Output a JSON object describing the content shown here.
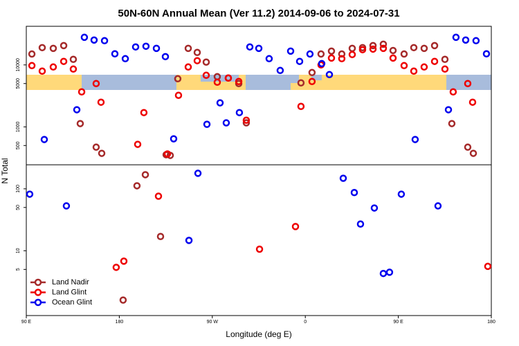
{
  "chart_data": {
    "type": "scatter",
    "title": "50N-60N Annual Mean (Ver 11.2)   2014-09-06 to 2024-07-31",
    "xlabel": "Longitude (deg E)",
    "ylabel": "N Total",
    "xlim": [
      90,
      540
    ],
    "xticks": [
      {
        "value": 90,
        "label": "90 E"
      },
      180,
      {
        "value": 270,
        "label": "90 W"
      },
      {
        "value": 360,
        "label": "0"
      },
      {
        "value": 450,
        "label": "90 E"
      },
      {
        "value": 540,
        "label": "180"
      }
    ],
    "ylim": [
      0.9,
      42000
    ],
    "log_y": true,
    "yticks": [
      5,
      10,
      50,
      100,
      500,
      1000,
      5000,
      10000
    ],
    "hline": 244,
    "legend": "lower left",
    "series": [
      {
        "name": "Land Nadir",
        "color": "#a52a2a",
        "x": [
          95.4,
          105.4,
          116.1,
          126.2,
          135.5,
          142.2,
          157.6,
          163.0,
          183.7,
          197.1,
          205.2,
          219.9,
          225.3,
          229.3,
          236.6,
          246.7,
          255.4,
          264.1,
          274.8,
          285.5,
          295.6,
          302.9,
          355.8,
          366.5,
          375.2,
          385.3,
          395.3,
          405.4,
          415.4,
          425.5,
          435.5,
          444.9,
          455.6,
          465.0,
          475.0,
          485.1,
          495.1,
          501.8,
          517.2,
          522.6
        ],
        "values": [
          15000,
          19000,
          18500,
          20500,
          12300,
          1130,
          470,
          374,
          1.6,
          112,
          169,
          17,
          355,
          346,
          5980,
          18500,
          15900,
          11100,
          6460,
          6140,
          5000,
          1160,
          5130,
          7540,
          15000,
          16700,
          15000,
          18500,
          19000,
          20500,
          21600,
          17100,
          15000,
          19000,
          18500,
          20500,
          12300,
          1130,
          470,
          374
        ]
      },
      {
        "name": "Land Glint",
        "color": "#ee0000",
        "x": [
          95.4,
          105.4,
          116.1,
          126.2,
          135.5,
          143.6,
          157.6,
          162.3,
          177.0,
          184.4,
          197.8,
          203.8,
          217.9,
          226.6,
          237.3,
          246.7,
          255.4,
          264.1,
          274.8,
          285.5,
          295.6,
          302.9,
          315.7,
          350.5,
          355.8,
          366.5,
          375.2,
          385.3,
          395.3,
          405.4,
          415.4,
          425.5,
          435.5,
          444.9,
          455.6,
          465.0,
          475.0,
          485.1,
          495.1,
          503.1,
          517.2,
          521.9,
          536.6
        ],
        "values": [
          9750,
          7940,
          9260,
          11400,
          8570,
          3670,
          5000,
          2500,
          5.4,
          6.8,
          522,
          1700,
          76,
          365,
          3230,
          9260,
          11700,
          6800,
          5260,
          6140,
          5400,
          1280,
          10.6,
          24.6,
          2140,
          5400,
          10000,
          12900,
          12600,
          14700,
          17600,
          18000,
          18500,
          12900,
          9750,
          7940,
          9260,
          11400,
          8570,
          3670,
          5000,
          2500,
          5.6
        ]
      },
      {
        "name": "Ocean Glint",
        "color": "#0000ee",
        "x": [
          93.3,
          107.4,
          128.8,
          138.9,
          146.2,
          155.6,
          165.7,
          175.7,
          185.8,
          195.8,
          205.8,
          215.9,
          224.6,
          232.6,
          247.4,
          256.1,
          264.8,
          277.5,
          283.5,
          296.2,
          306.3,
          315.0,
          325.0,
          335.7,
          345.8,
          354.5,
          364.5,
          375.9,
          383.3,
          396.7,
          407.4,
          413.4,
          426.8,
          435.5,
          441.5,
          452.9,
          466.3,
          488.4,
          498.5,
          505.8,
          515.2,
          525.2,
          535.3
        ],
        "values": [
          82,
          625,
          53,
          1890,
          27900,
          25200,
          24600,
          15100,
          12600,
          19500,
          20000,
          18500,
          13600,
          641,
          14.7,
          178,
          1100,
          2440,
          1160,
          1700,
          19500,
          18500,
          12600,
          8140,
          16700,
          11400,
          15000,
          10500,
          6980,
          148,
          87,
          27,
          49,
          4.3,
          4.5,
          82,
          625,
          53,
          1890,
          27900,
          25200,
          24600,
          15100
        ]
      }
    ]
  }
}
